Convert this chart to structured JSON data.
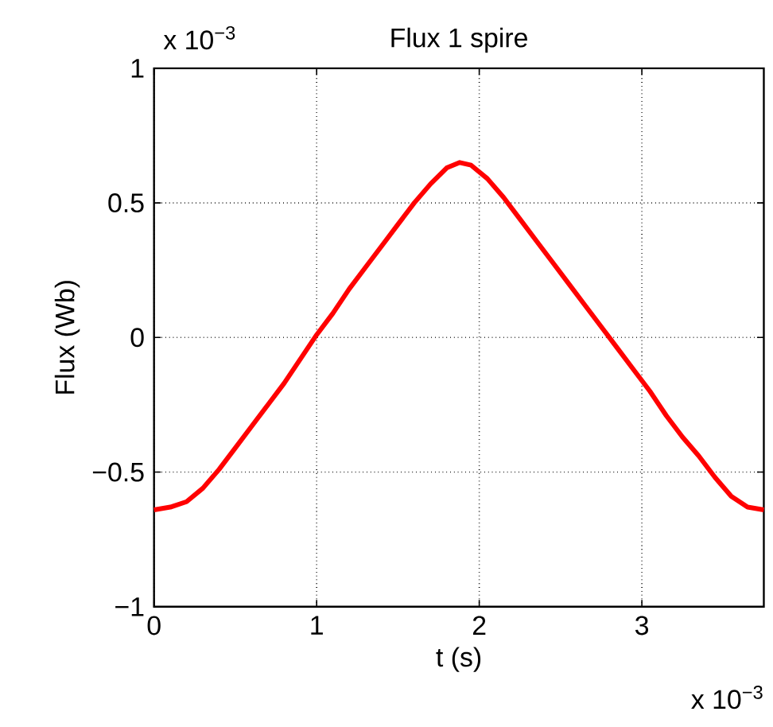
{
  "chart_data": {
    "type": "line",
    "title": "Flux 1 spire",
    "xlabel": "t (s)",
    "ylabel": "Flux (Wb)",
    "annotations": [
      "x 10$^{−3}$",
      "x 10$^{−3}$"
    ],
    "x": [
      0,
      0.1,
      0.2,
      0.3,
      0.4,
      0.5,
      0.6,
      0.7,
      0.8,
      0.9,
      1.0,
      1.1,
      1.2,
      1.3,
      1.4,
      1.5,
      1.6,
      1.7,
      1.8,
      1.88,
      1.95,
      2.05,
      2.15,
      2.25,
      2.35,
      2.45,
      2.55,
      2.65,
      2.75,
      2.85,
      2.95,
      3.05,
      3.15,
      3.25,
      3.35,
      3.45,
      3.55,
      3.65,
      3.75
    ],
    "series": [
      {
        "color": "#ff0000",
        "values": [
          -0.64,
          -0.63,
          -0.61,
          -0.56,
          -0.49,
          -0.41,
          -0.33,
          -0.25,
          -0.17,
          -0.08,
          0.01,
          0.09,
          0.18,
          0.26,
          0.34,
          0.42,
          0.5,
          0.57,
          0.63,
          0.65,
          0.64,
          0.59,
          0.52,
          0.44,
          0.36,
          0.28,
          0.2,
          0.12,
          0.04,
          -0.04,
          -0.12,
          -0.2,
          -0.29,
          -0.37,
          -0.44,
          -0.52,
          -0.59,
          -0.63,
          -0.64
        ]
      }
    ],
    "xlim": [
      0,
      3.75
    ],
    "ylim": [
      -1,
      1
    ],
    "xticks": [
      0,
      1,
      2,
      3
    ],
    "yticks": [
      {
        "value": -1,
        "label": "−1"
      },
      {
        "value": -0.5,
        "label": "−0.5"
      },
      0,
      0.5,
      1
    ],
    "grid": true,
    "marker": "none",
    "line_style": "solid"
  }
}
